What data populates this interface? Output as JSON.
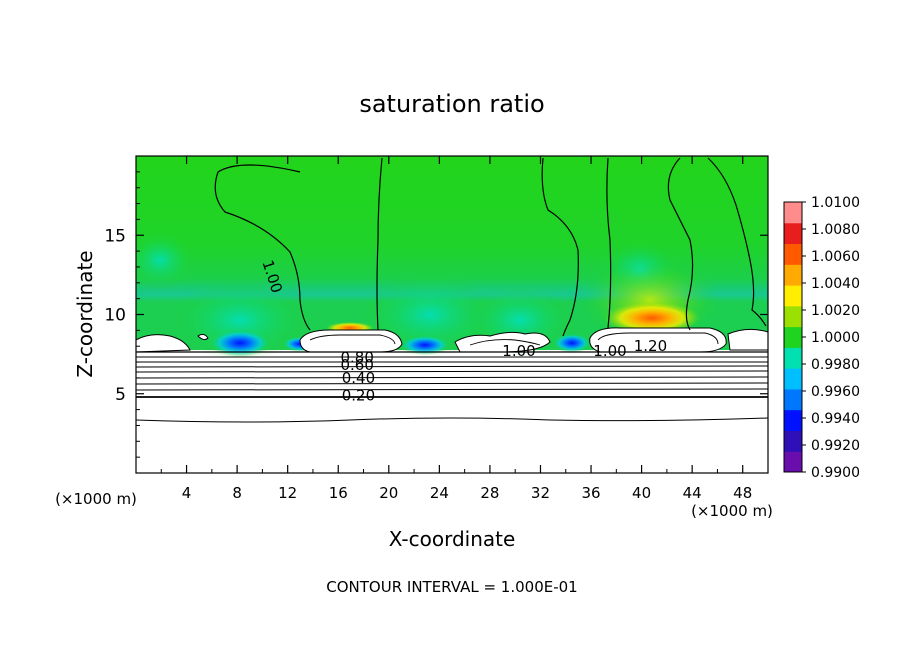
{
  "chart_data": {
    "type": "heatmap",
    "title": "saturation ratio",
    "xlabel": "X-coordinate",
    "ylabel": "Z-coordinate",
    "x_unit": "(×1000 m)",
    "z_unit": "(×1000 m)",
    "footer": "CONTOUR INTERVAL = 1.000E-01",
    "xlim": [
      0,
      50
    ],
    "ylim": [
      0,
      20
    ],
    "x_ticks": [
      4,
      8,
      12,
      16,
      20,
      24,
      28,
      32,
      36,
      40,
      44,
      48
    ],
    "y_ticks": [
      5,
      10,
      15
    ],
    "colorbar": {
      "min": 0.99,
      "max": 1.01,
      "ticks": [
        "1.0100",
        "1.0080",
        "1.0060",
        "1.0040",
        "1.0020",
        "1.0000",
        "0.9980",
        "0.9960",
        "0.9940",
        "0.9920",
        "0.9900"
      ],
      "colors": [
        "#6a0dad",
        "#2e0fb8",
        "#0011ff",
        "#0077ff",
        "#00bfff",
        "#00e0b0",
        "#1ed41e",
        "#9be000",
        "#ffee00",
        "#ffaa00",
        "#ff5a00",
        "#e81e1e",
        "#ff8c8c"
      ]
    },
    "contour_labels": [
      {
        "text": "1.00",
        "x": 10.4,
        "z": 12.3
      },
      {
        "text": "0.80",
        "x": 17.5,
        "z": 7.3
      },
      {
        "text": "0.60",
        "x": 17.5,
        "z": 6.8
      },
      {
        "text": "0.40",
        "x": 17.6,
        "z": 6.0
      },
      {
        "text": "0.20",
        "x": 17.6,
        "z": 4.9
      },
      {
        "text": "1.00",
        "x": 30.3,
        "z": 7.7
      },
      {
        "text": "1.00",
        "x": 37.5,
        "z": 7.7
      },
      {
        "text": "1.20",
        "x": 40.7,
        "z": 8.0
      }
    ],
    "field_description_levels": {
      "upper_background": 1.0,
      "low_minimum_regions_x": [
        8,
        22,
        34
      ],
      "high_maximum_region_x": [
        40
      ]
    }
  }
}
